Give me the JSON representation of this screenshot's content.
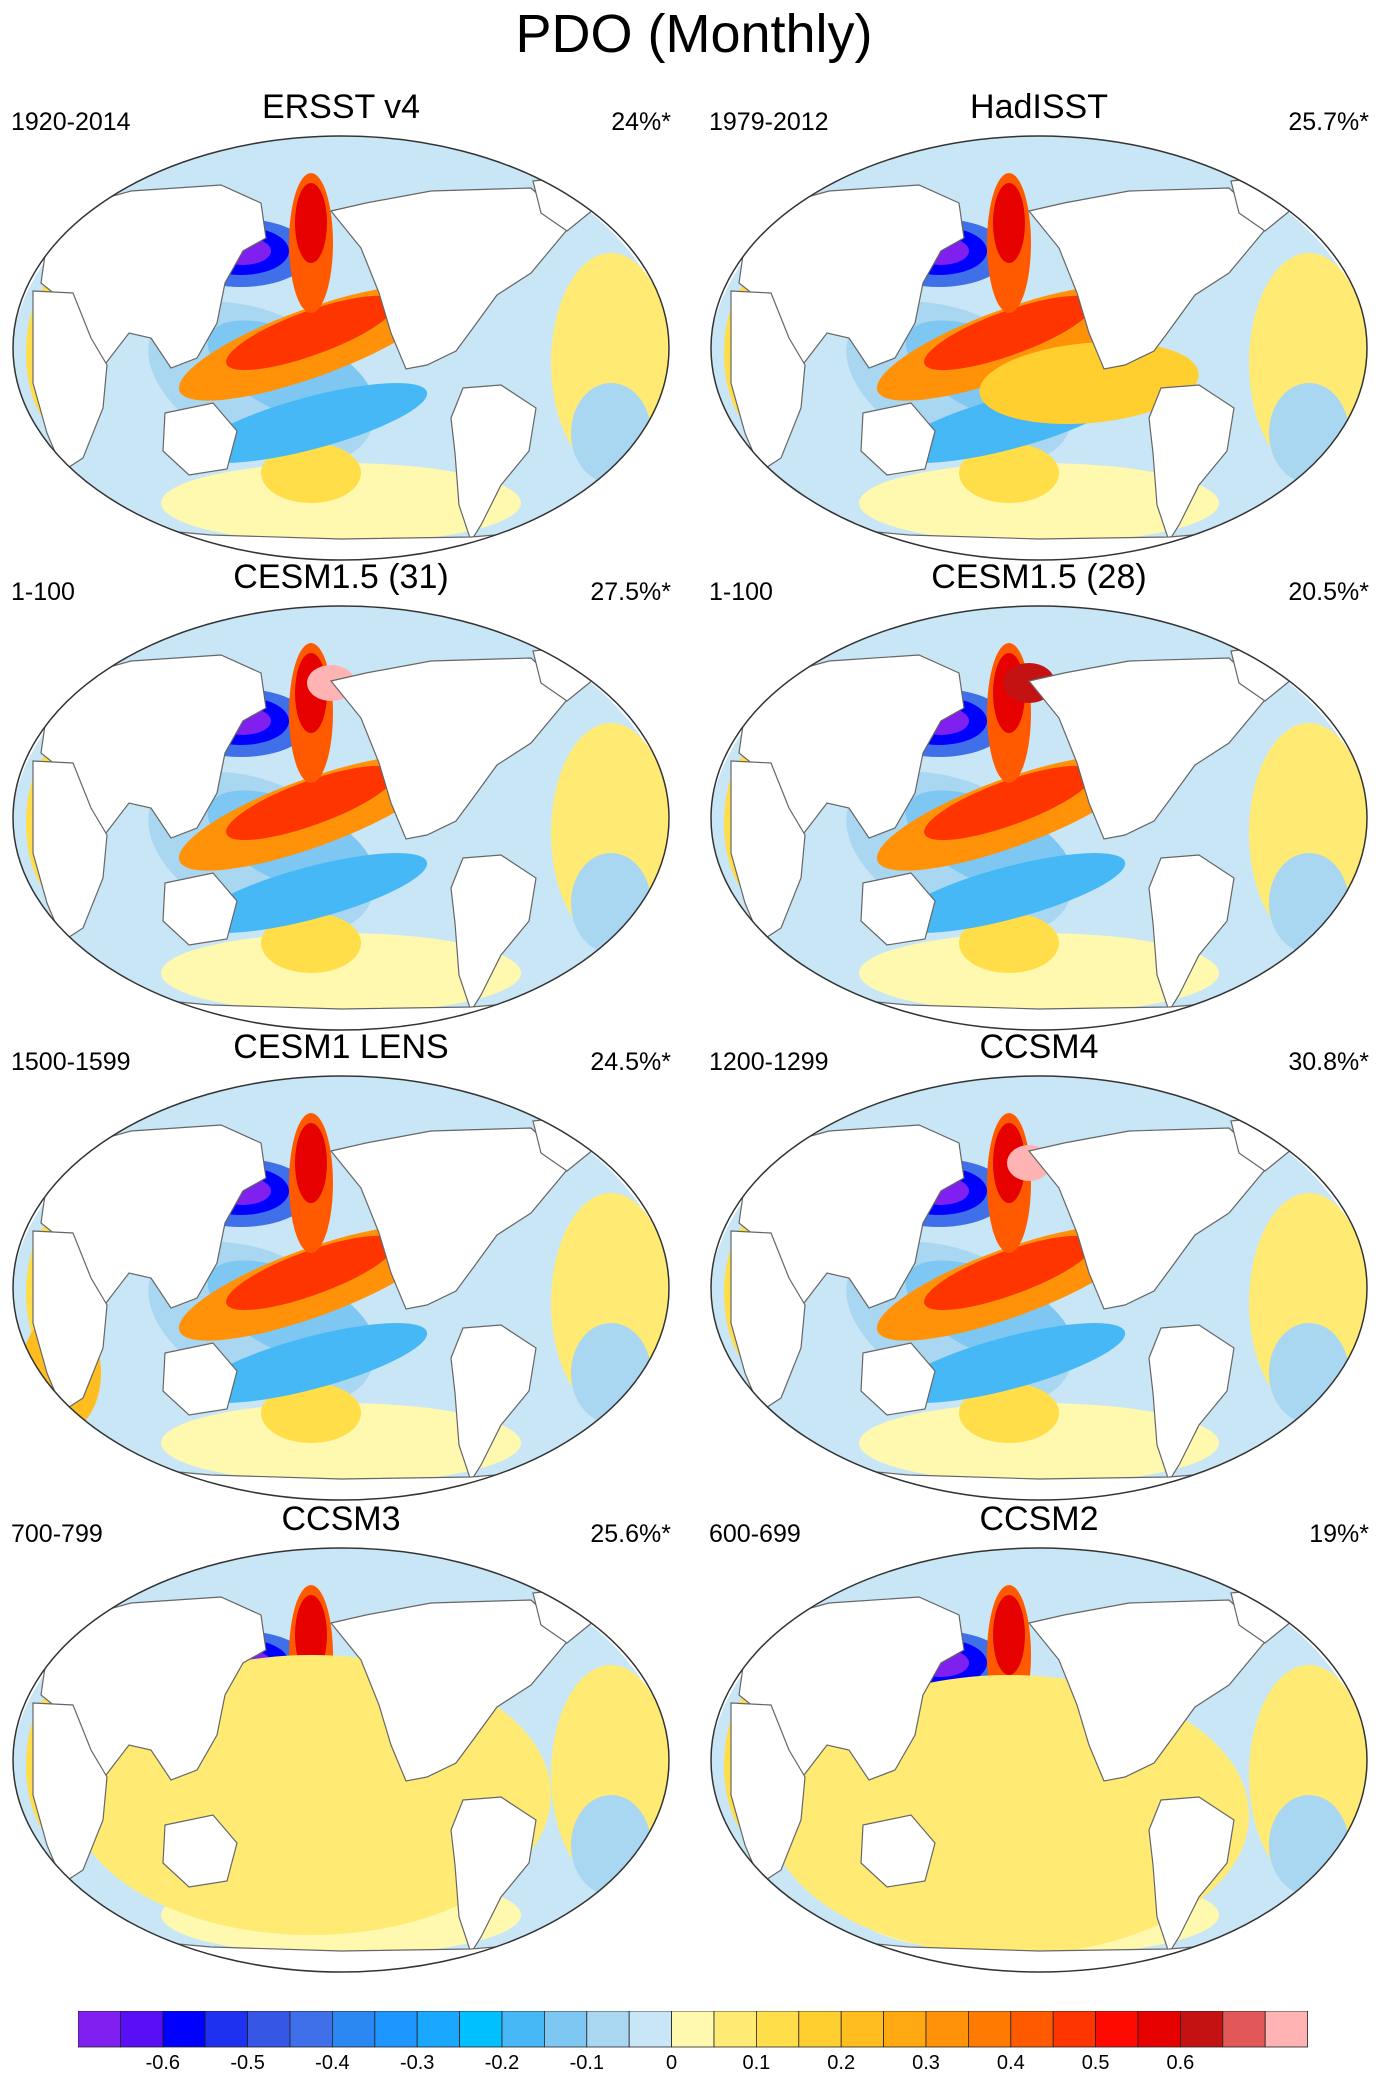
{
  "title": "PDO (Monthly)",
  "panels": [
    {
      "name": "ERSST v4",
      "period": "1920-2014",
      "variance": "24%*"
    },
    {
      "name": "HadISST",
      "period": "1979-2012",
      "variance": "25.7%*"
    },
    {
      "name": "CESM1.5 (31)",
      "period": "1-100",
      "variance": "27.5%*"
    },
    {
      "name": "CESM1.5 (28)",
      "period": "1-100",
      "variance": "20.5%*"
    },
    {
      "name": "CESM1 LENS",
      "period": "1500-1599",
      "variance": "24.5%*"
    },
    {
      "name": "CCSM4",
      "period": "1200-1299",
      "variance": "30.8%*"
    },
    {
      "name": "CCSM3",
      "period": "700-799",
      "variance": "25.6%*"
    },
    {
      "name": "CCSM2",
      "period": "600-699",
      "variance": "19%*"
    }
  ],
  "colorbar": {
    "colors": [
      "#7f1ff0",
      "#5a0ef5",
      "#0000ff",
      "#1e30f0",
      "#3656e6",
      "#3f6fe9",
      "#2b87f2",
      "#1e96ff",
      "#1aa8ff",
      "#00c0ff",
      "#45b8f5",
      "#7dc7f2",
      "#a9d6f0",
      "#c8e6f5",
      "#fff9b0",
      "#ffeb73",
      "#ffde4a",
      "#ffcf30",
      "#ffbd1f",
      "#ffa812",
      "#ff9208",
      "#ff7a00",
      "#ff5a00",
      "#ff3500",
      "#ff0a00",
      "#e60000",
      "#c41111",
      "#e25858",
      "#ffb3b3"
    ],
    "tick_labels": [
      "-0.6",
      "-0.5",
      "-0.4",
      "-0.3",
      "-0.2",
      "-0.1",
      "0",
      "0.1",
      "0.2",
      "0.3",
      "0.4",
      "0.5",
      "0.6"
    ]
  }
}
